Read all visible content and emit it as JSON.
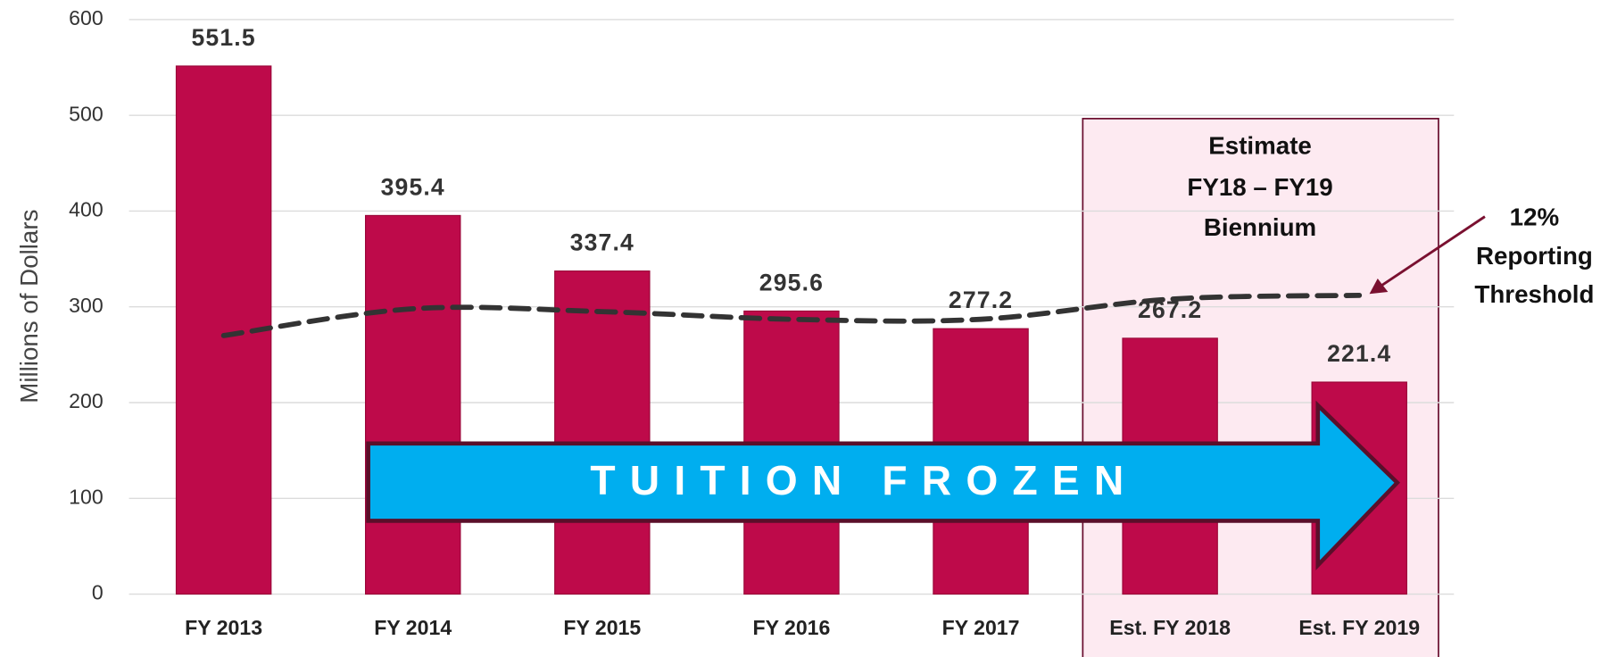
{
  "chart_data": {
    "type": "bar",
    "y_axis_label": "Millions of Dollars",
    "categories": [
      "FY 2013",
      "FY 2014",
      "FY 2015",
      "FY 2016",
      "FY 2017",
      "Est. FY 2018",
      "Est. FY 2019"
    ],
    "values": [
      551.5,
      395.4,
      337.4,
      295.6,
      277.2,
      267.2,
      221.4
    ],
    "color": "#be0a4a",
    "threshold_line": {
      "values": [
        270,
        298,
        295,
        287,
        287,
        308,
        312
      ],
      "color": "#333333",
      "dashed": true
    },
    "ylim": [
      0,
      600
    ],
    "yticks": [
      0,
      100,
      200,
      300,
      400,
      500,
      600
    ],
    "grid": true,
    "annotations": {
      "estimate": [
        "Estimate",
        "FY18 – FY19",
        "Biennium"
      ],
      "threshold": [
        "12%",
        "Reporting",
        "Threshold"
      ],
      "arrow": "TUITION FROZEN"
    }
  }
}
